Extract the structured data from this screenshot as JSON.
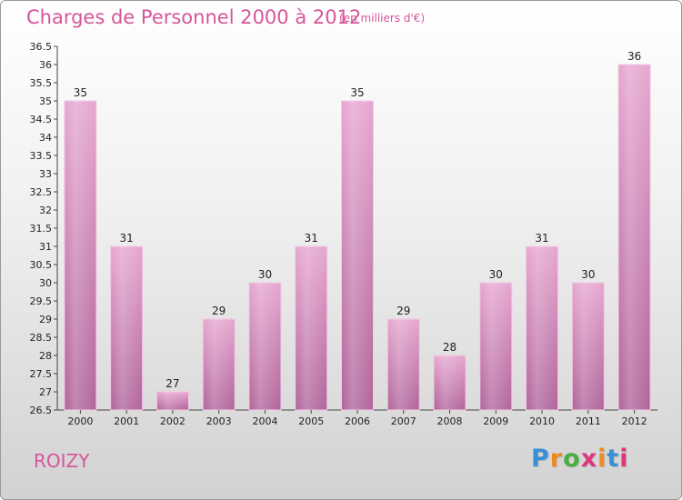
{
  "header": {
    "title": "Charges de Personnel 2000 à 2012",
    "subtitle": "(en milliers d'€)"
  },
  "footer": {
    "city": "ROIZY",
    "logo_text": "Proxiti",
    "logo_colors": [
      "#3a8fd6",
      "#f08a1e",
      "#49ad3f",
      "#e0367b",
      "#f08a1e",
      "#3a8fd6",
      "#e0367b"
    ]
  },
  "colors": {
    "accent": "#d6559b",
    "bar_light": "#e6a6cf",
    "bar_dark": "#b0649a"
  },
  "chart_data": {
    "type": "bar",
    "title": "Charges de Personnel 2000 à 2012",
    "subtitle": "(en milliers d'€)",
    "categories": [
      "2000",
      "2001",
      "2002",
      "2003",
      "2004",
      "2005",
      "2006",
      "2007",
      "2008",
      "2009",
      "2010",
      "2011",
      "2012"
    ],
    "values": [
      35,
      31,
      27,
      29,
      30,
      31,
      35,
      29,
      28,
      30,
      31,
      30,
      36
    ],
    "ylim": [
      26.5,
      36.5
    ],
    "yticks": [
      "26.5",
      "27",
      "27.5",
      "28",
      "28.5",
      "29",
      "29.5",
      "30",
      "30.5",
      "31",
      "31.5",
      "32",
      "32.5",
      "33",
      "33.5",
      "34",
      "34.5",
      "35",
      "35.5",
      "36",
      "36.5"
    ],
    "grid": false
  }
}
